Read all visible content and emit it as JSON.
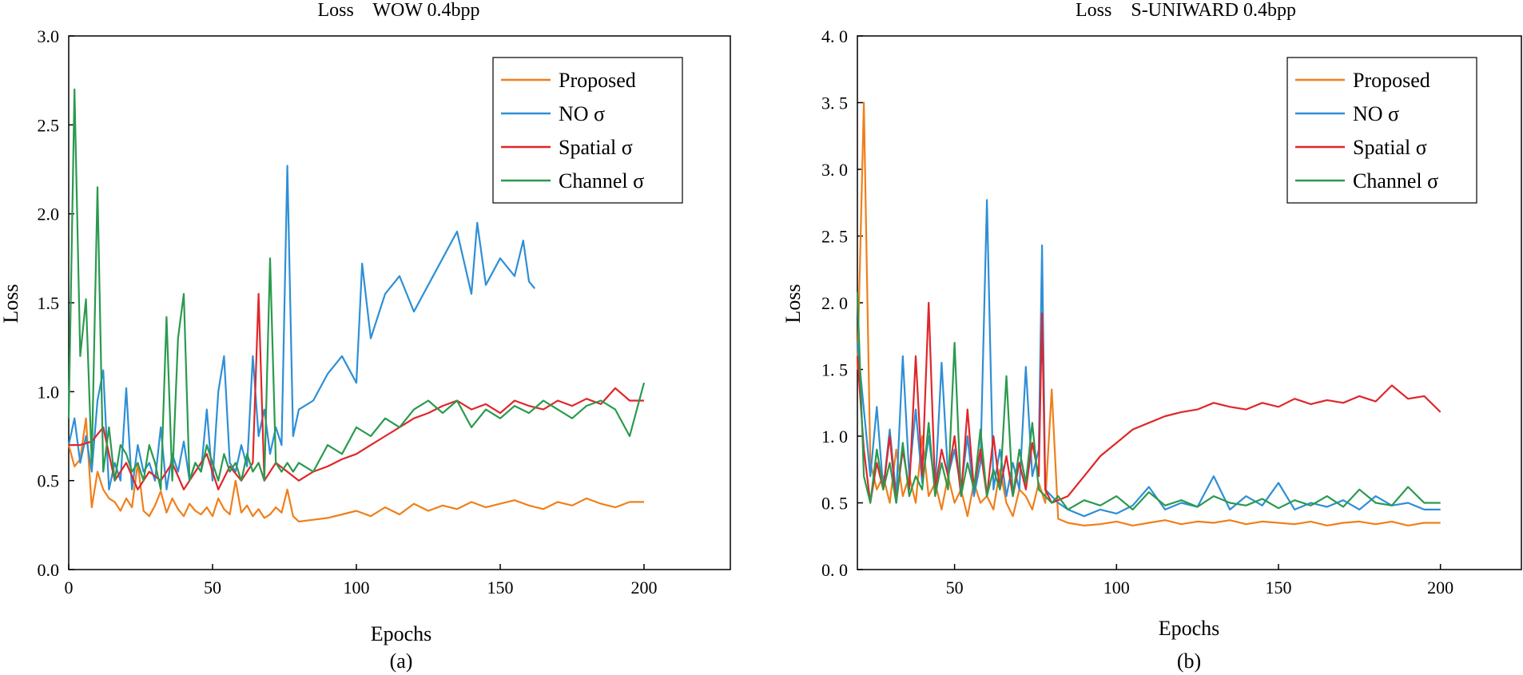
{
  "chart_data": [
    {
      "type": "line",
      "title": "Loss    WOW 0.4bpp",
      "xlabel": "Epochs",
      "ylabel": "Loss",
      "caption": "(a)",
      "xlim": [
        0,
        230
      ],
      "ylim": [
        0,
        3.0
      ],
      "xticks": [
        "0",
        "50",
        "100",
        "150",
        "200"
      ],
      "yticks": [
        "0.0",
        "0.5",
        "1.0",
        "1.5",
        "2.0",
        "2.5",
        "3.0"
      ],
      "grid": false,
      "legend_position": "top-right",
      "series": [
        {
          "name": "Proposed",
          "color": "#f07f1a",
          "x": [
            0,
            2,
            4,
            6,
            8,
            10,
            12,
            14,
            16,
            18,
            20,
            22,
            24,
            26,
            28,
            30,
            32,
            34,
            36,
            38,
            40,
            42,
            44,
            46,
            48,
            50,
            52,
            54,
            56,
            58,
            60,
            62,
            64,
            66,
            68,
            70,
            72,
            74,
            76,
            78,
            80,
            85,
            90,
            95,
            100,
            105,
            110,
            115,
            120,
            125,
            130,
            135,
            140,
            145,
            150,
            155,
            160,
            165,
            170,
            175,
            180,
            185,
            190,
            195,
            200
          ],
          "y": [
            0.7,
            0.58,
            0.62,
            0.85,
            0.35,
            0.55,
            0.45,
            0.4,
            0.38,
            0.33,
            0.4,
            0.35,
            0.6,
            0.33,
            0.3,
            0.36,
            0.44,
            0.32,
            0.4,
            0.34,
            0.3,
            0.37,
            0.33,
            0.31,
            0.35,
            0.3,
            0.4,
            0.34,
            0.31,
            0.5,
            0.32,
            0.36,
            0.3,
            0.34,
            0.29,
            0.31,
            0.35,
            0.32,
            0.45,
            0.3,
            0.27,
            0.28,
            0.29,
            0.31,
            0.33,
            0.3,
            0.35,
            0.31,
            0.37,
            0.33,
            0.36,
            0.34,
            0.38,
            0.35,
            0.37,
            0.39,
            0.36,
            0.34,
            0.38,
            0.36,
            0.4,
            0.37,
            0.35,
            0.38,
            0.38
          ]
        },
        {
          "name": "NO σ",
          "color": "#2e8fd6",
          "x": [
            0,
            2,
            4,
            6,
            8,
            10,
            12,
            14,
            16,
            18,
            20,
            22,
            24,
            26,
            28,
            30,
            32,
            34,
            36,
            38,
            40,
            42,
            44,
            46,
            48,
            50,
            52,
            54,
            56,
            58,
            60,
            62,
            64,
            66,
            68,
            70,
            72,
            74,
            76,
            78,
            80,
            85,
            90,
            95,
            100,
            102,
            105,
            110,
            115,
            120,
            125,
            130,
            135,
            140,
            142,
            145,
            150,
            155,
            158,
            160,
            162
          ],
          "y": [
            0.7,
            0.85,
            0.6,
            0.75,
            0.55,
            0.95,
            1.12,
            0.45,
            0.6,
            0.5,
            1.02,
            0.45,
            0.7,
            0.55,
            0.6,
            0.5,
            0.8,
            0.45,
            0.65,
            0.55,
            0.72,
            0.5,
            0.6,
            0.55,
            0.9,
            0.5,
            1.0,
            1.2,
            0.6,
            0.55,
            0.7,
            0.58,
            1.2,
            0.75,
            0.9,
            0.65,
            0.8,
            0.7,
            2.27,
            0.75,
            0.9,
            0.95,
            1.1,
            1.2,
            1.05,
            1.72,
            1.3,
            1.55,
            1.65,
            1.45,
            1.6,
            1.75,
            1.9,
            1.55,
            1.95,
            1.6,
            1.75,
            1.65,
            1.85,
            1.62,
            1.58
          ]
        },
        {
          "name": "Spatial σ",
          "color": "#e0262a",
          "x": [
            0,
            4,
            8,
            12,
            16,
            20,
            24,
            28,
            32,
            36,
            40,
            44,
            48,
            52,
            56,
            60,
            64,
            66,
            68,
            72,
            76,
            80,
            85,
            90,
            95,
            100,
            105,
            110,
            115,
            120,
            125,
            130,
            135,
            140,
            145,
            150,
            155,
            160,
            165,
            170,
            175,
            180,
            185,
            190,
            195,
            200
          ],
          "y": [
            0.7,
            0.7,
            0.72,
            0.8,
            0.5,
            0.6,
            0.45,
            0.55,
            0.5,
            0.6,
            0.45,
            0.55,
            0.65,
            0.45,
            0.58,
            0.5,
            0.6,
            1.55,
            0.5,
            0.6,
            0.55,
            0.5,
            0.55,
            0.58,
            0.62,
            0.65,
            0.7,
            0.75,
            0.8,
            0.85,
            0.88,
            0.92,
            0.95,
            0.9,
            0.93,
            0.88,
            0.95,
            0.92,
            0.9,
            0.95,
            0.92,
            0.96,
            0.93,
            1.02,
            0.95,
            0.95
          ]
        },
        {
          "name": "Channel σ",
          "color": "#2a9a4e",
          "x": [
            0,
            2,
            4,
            6,
            8,
            10,
            12,
            14,
            16,
            18,
            20,
            22,
            24,
            26,
            28,
            30,
            32,
            34,
            36,
            38,
            40,
            42,
            44,
            46,
            48,
            50,
            52,
            54,
            56,
            58,
            60,
            62,
            64,
            66,
            68,
            70,
            72,
            74,
            76,
            78,
            80,
            85,
            90,
            95,
            100,
            105,
            110,
            115,
            120,
            125,
            130,
            135,
            140,
            145,
            150,
            155,
            160,
            165,
            170,
            175,
            180,
            185,
            190,
            195,
            200
          ],
          "y": [
            0.85,
            2.7,
            1.2,
            1.52,
            0.6,
            2.15,
            0.55,
            0.8,
            0.5,
            0.7,
            0.65,
            0.55,
            0.6,
            0.5,
            0.7,
            0.6,
            0.45,
            1.42,
            0.5,
            1.3,
            1.55,
            0.5,
            0.6,
            0.55,
            0.7,
            0.6,
            0.5,
            0.65,
            0.55,
            0.6,
            0.5,
            0.65,
            0.55,
            0.6,
            0.5,
            1.75,
            0.6,
            0.55,
            0.6,
            0.55,
            0.6,
            0.55,
            0.7,
            0.65,
            0.8,
            0.75,
            0.85,
            0.8,
            0.9,
            0.95,
            0.88,
            0.95,
            0.8,
            0.9,
            0.85,
            0.92,
            0.88,
            0.95,
            0.9,
            0.85,
            0.92,
            0.95,
            0.9,
            0.75,
            1.05
          ]
        }
      ]
    },
    {
      "type": "line",
      "title": "Loss    S-UNIWARD 0.4bpp",
      "xlabel": "Epochs",
      "ylabel": "Loss",
      "caption": "(b)",
      "xlim": [
        20,
        225
      ],
      "ylim": [
        0,
        4.0
      ],
      "xticks": [
        "50",
        "100",
        "150",
        "200"
      ],
      "yticks": [
        "0. 0",
        "0. 5",
        "1. 0",
        "1. 5",
        "2. 0",
        "2. 5",
        "3. 0",
        "3. 5",
        "4. 0"
      ],
      "grid": false,
      "legend_position": "top-right",
      "series": [
        {
          "name": "Proposed",
          "color": "#f07f1a",
          "x": [
            20,
            22,
            24,
            26,
            28,
            30,
            32,
            34,
            36,
            38,
            40,
            42,
            44,
            46,
            48,
            50,
            52,
            54,
            56,
            58,
            60,
            62,
            64,
            66,
            68,
            70,
            72,
            74,
            76,
            78,
            80,
            82,
            85,
            90,
            95,
            100,
            105,
            110,
            115,
            120,
            125,
            130,
            135,
            140,
            145,
            150,
            155,
            160,
            165,
            170,
            175,
            180,
            185,
            190,
            195,
            200
          ],
          "y": [
            1.5,
            3.5,
            0.8,
            0.6,
            0.7,
            0.5,
            0.9,
            0.55,
            0.7,
            0.5,
            1.0,
            0.55,
            0.65,
            0.45,
            0.7,
            0.5,
            0.6,
            0.4,
            0.65,
            0.5,
            0.55,
            0.45,
            0.75,
            0.5,
            0.4,
            0.6,
            0.55,
            0.45,
            0.65,
            0.5,
            1.35,
            0.38,
            0.35,
            0.33,
            0.34,
            0.36,
            0.33,
            0.35,
            0.37,
            0.34,
            0.36,
            0.35,
            0.37,
            0.34,
            0.36,
            0.35,
            0.34,
            0.36,
            0.33,
            0.35,
            0.36,
            0.34,
            0.36,
            0.33,
            0.35,
            0.35
          ]
        },
        {
          "name": "NO σ",
          "color": "#2e8fd6",
          "x": [
            20,
            22,
            24,
            26,
            28,
            30,
            32,
            34,
            36,
            38,
            40,
            42,
            44,
            46,
            48,
            50,
            52,
            54,
            56,
            58,
            60,
            62,
            64,
            66,
            68,
            70,
            72,
            74,
            76,
            77,
            78,
            80,
            82,
            85,
            90,
            95,
            100,
            105,
            110,
            115,
            120,
            125,
            130,
            135,
            140,
            145,
            150,
            155,
            160,
            165,
            170,
            175,
            180,
            185,
            190,
            195,
            200
          ],
          "y": [
            1.7,
            1.2,
            0.7,
            1.22,
            0.6,
            1.05,
            0.55,
            1.6,
            0.7,
            1.2,
            0.65,
            1.0,
            0.6,
            1.55,
            0.7,
            0.9,
            0.6,
            1.0,
            0.55,
            0.8,
            2.77,
            0.6,
            0.9,
            0.55,
            0.8,
            0.6,
            1.52,
            0.7,
            0.9,
            2.43,
            0.6,
            0.55,
            0.5,
            0.45,
            0.4,
            0.45,
            0.42,
            0.48,
            0.62,
            0.45,
            0.5,
            0.47,
            0.7,
            0.45,
            0.55,
            0.48,
            0.65,
            0.45,
            0.5,
            0.47,
            0.52,
            0.45,
            0.55,
            0.48,
            0.5,
            0.45,
            0.45
          ]
        },
        {
          "name": "Spatial σ",
          "color": "#e0262a",
          "x": [
            20,
            22,
            24,
            26,
            28,
            30,
            32,
            34,
            36,
            38,
            40,
            42,
            44,
            46,
            48,
            50,
            52,
            54,
            56,
            58,
            60,
            62,
            64,
            66,
            68,
            70,
            72,
            74,
            76,
            77,
            78,
            80,
            82,
            85,
            90,
            95,
            100,
            105,
            110,
            115,
            120,
            125,
            130,
            135,
            140,
            145,
            150,
            155,
            160,
            165,
            170,
            175,
            180,
            185,
            190,
            195,
            200
          ],
          "y": [
            1.6,
            0.9,
            0.5,
            0.8,
            0.6,
            1.0,
            0.5,
            0.9,
            0.6,
            1.6,
            0.7,
            2.0,
            0.6,
            0.9,
            0.7,
            1.0,
            0.55,
            1.2,
            0.6,
            0.9,
            0.55,
            1.0,
            0.6,
            0.85,
            0.55,
            0.8,
            0.6,
            0.95,
            0.7,
            1.92,
            0.6,
            0.5,
            0.52,
            0.55,
            0.7,
            0.85,
            0.95,
            1.05,
            1.1,
            1.15,
            1.18,
            1.2,
            1.25,
            1.22,
            1.2,
            1.25,
            1.22,
            1.28,
            1.24,
            1.27,
            1.25,
            1.3,
            1.26,
            1.38,
            1.28,
            1.3,
            1.18
          ]
        },
        {
          "name": "Channel σ",
          "color": "#2a9a4e",
          "x": [
            20,
            22,
            24,
            26,
            28,
            30,
            32,
            34,
            36,
            38,
            40,
            42,
            44,
            46,
            48,
            50,
            52,
            54,
            56,
            58,
            60,
            62,
            64,
            66,
            68,
            70,
            72,
            74,
            76,
            78,
            80,
            82,
            85,
            90,
            95,
            100,
            105,
            110,
            115,
            120,
            125,
            130,
            135,
            140,
            145,
            150,
            155,
            160,
            165,
            170,
            175,
            180,
            185,
            190,
            195,
            200
          ],
          "y": [
            2.08,
            0.7,
            0.5,
            0.9,
            0.6,
            0.8,
            0.5,
            0.95,
            0.55,
            0.7,
            0.6,
            1.1,
            0.55,
            0.8,
            0.6,
            1.7,
            0.55,
            0.8,
            0.6,
            1.05,
            0.55,
            0.75,
            0.6,
            1.45,
            0.55,
            0.9,
            0.65,
            1.1,
            0.6,
            0.55,
            0.5,
            0.55,
            0.45,
            0.52,
            0.48,
            0.55,
            0.45,
            0.58,
            0.48,
            0.52,
            0.47,
            0.55,
            0.5,
            0.48,
            0.53,
            0.46,
            0.52,
            0.48,
            0.55,
            0.47,
            0.6,
            0.5,
            0.48,
            0.62,
            0.5,
            0.5
          ]
        }
      ]
    }
  ]
}
